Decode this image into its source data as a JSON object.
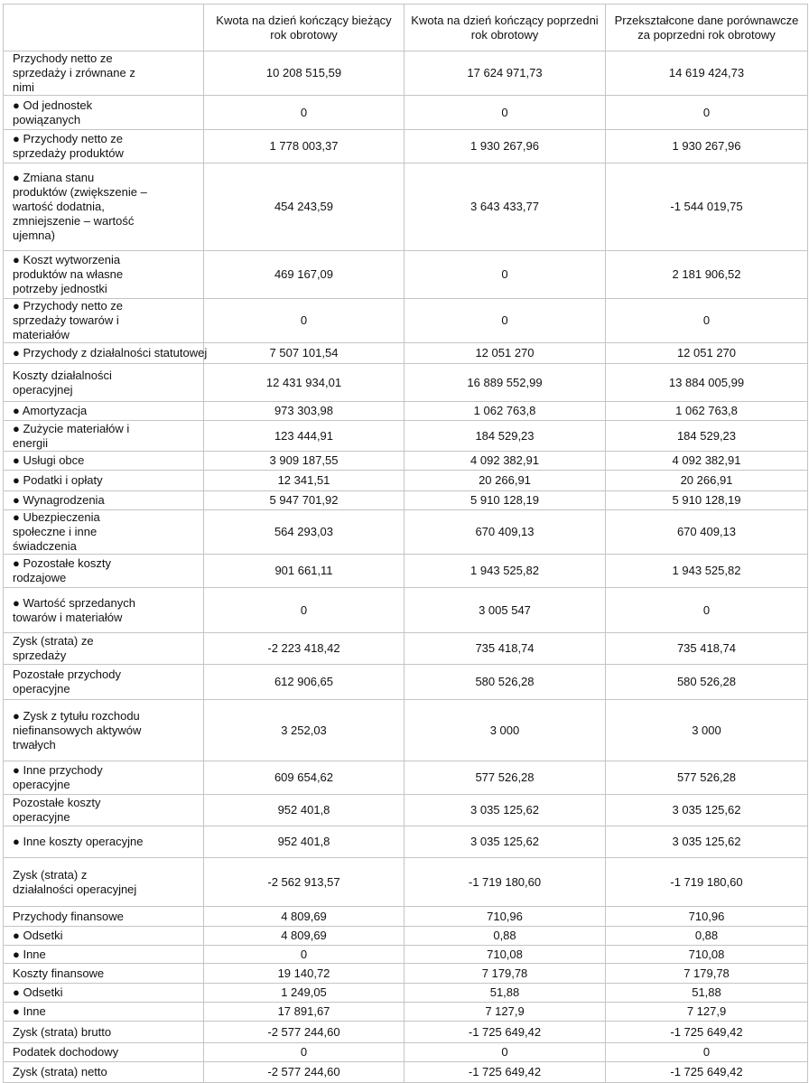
{
  "table": {
    "headers": [
      "",
      "Kwota na dzień kończący bieżący rok obrotowy",
      "Kwota na dzień kończący poprzedni rok obrotowy",
      "Przekształcone dane porównawcze za poprzedni rok obrotowy"
    ],
    "rows": [
      {
        "label": "Przychody netto ze sprzedaży i zrównane z nimi",
        "values": [
          "10 208 515,59",
          "17 624 971,73",
          "14 619 424,73"
        ]
      },
      {
        "label": "● Od jednostek powiązanych",
        "values": [
          "0",
          "0",
          "0"
        ]
      },
      {
        "label": "● Przychody netto ze sprzedaży produktów",
        "values": [
          "1 778 003,37",
          "1 930 267,96",
          "1 930 267,96"
        ]
      },
      {
        "label": "● Zmiana stanu produktów (zwiększenie – wartość dodatnia, zmniejszenie – wartość ujemna)",
        "values": [
          "454 243,59",
          "3 643 433,77",
          "-1 544 019,75"
        ]
      },
      {
        "label": "● Koszt wytworzenia produktów na własne potrzeby jednostki",
        "values": [
          "469 167,09",
          "0",
          "2 181 906,52"
        ]
      },
      {
        "label": "● Przychody netto ze sprzedaży towarów i materiałów",
        "values": [
          "0",
          "0",
          "0"
        ]
      },
      {
        "label": "●    Przychody z działalności statutowej",
        "values": [
          "7 507 101,54",
          "12 051 270",
          "12 051 270"
        ]
      },
      {
        "label": "Koszty działalności operacyjnej",
        "values": [
          "12 431 934,01",
          "16 889 552,99",
          "13 884 005,99"
        ]
      },
      {
        "label": "● Amortyzacja",
        "values": [
          "973 303,98",
          "1 062 763,8",
          "1 062 763,8"
        ]
      },
      {
        "label": "● Zużycie materiałów i energii",
        "values": [
          "123 444,91",
          "184 529,23",
          "184 529,23"
        ]
      },
      {
        "label": "● Usługi obce",
        "values": [
          "3 909 187,55",
          "4 092 382,91",
          "4 092 382,91"
        ]
      },
      {
        "label": "● Podatki i opłaty",
        "values": [
          "12 341,51",
          "20 266,91",
          "20 266,91"
        ]
      },
      {
        "label": "● Wynagrodzenia",
        "values": [
          "5 947 701,92",
          "5 910 128,19",
          "5 910 128,19"
        ]
      },
      {
        "label": "● Ubezpieczenia społeczne i inne świadczenia",
        "values": [
          "564 293,03",
          "670 409,13",
          "670 409,13"
        ]
      },
      {
        "label": "● Pozostałe koszty rodzajowe",
        "values": [
          "901 661,11",
          "1 943 525,82",
          "1 943 525,82"
        ]
      },
      {
        "label": "● Wartość sprzedanych towarów i materiałów",
        "values": [
          "0",
          "3 005 547",
          "0"
        ]
      },
      {
        "label": "Zysk (strata) ze sprzedaży",
        "values": [
          "-2 223 418,42",
          "735 418,74",
          "735 418,74"
        ]
      },
      {
        "label": "Pozostałe przychody operacyjne",
        "values": [
          "612 906,65",
          "580 526,28",
          "580 526,28"
        ]
      },
      {
        "label": "● Zysk z tytułu rozchodu niefinansowych aktywów trwałych",
        "values": [
          "3 252,03",
          "3 000",
          "3 000"
        ]
      },
      {
        "label": "● Inne przychody operacyjne",
        "values": [
          "609 654,62",
          "577 526,28",
          "577 526,28"
        ]
      },
      {
        "label": "Pozostałe koszty operacyjne",
        "values": [
          "952 401,8",
          "3 035 125,62",
          "3 035 125,62"
        ]
      },
      {
        "label": "● Inne koszty operacyjne",
        "values": [
          "952 401,8",
          "3 035 125,62",
          "3 035 125,62"
        ]
      },
      {
        "label": "Zysk (strata) z działalności operacyjnej",
        "values": [
          "-2 562 913,57",
          "-1 719 180,60",
          "-1 719 180,60"
        ]
      },
      {
        "label": "Przychody finansowe",
        "values": [
          "4 809,69",
          "710,96",
          "710,96"
        ]
      },
      {
        "label": "● Odsetki",
        "values": [
          "4 809,69",
          "0,88",
          "0,88"
        ]
      },
      {
        "label": "● Inne",
        "values": [
          "0",
          "710,08",
          "710,08"
        ]
      },
      {
        "label": "Koszty finansowe",
        "values": [
          "19 140,72",
          "7 179,78",
          "7 179,78"
        ]
      },
      {
        "label": "● Odsetki",
        "values": [
          "1 249,05",
          "51,88",
          "51,88"
        ]
      },
      {
        "label": "● Inne",
        "values": [
          "17 891,67",
          "7 127,9",
          "7 127,9"
        ]
      },
      {
        "label": "Zysk (strata) brutto",
        "values": [
          "-2 577 244,60",
          "-1 725 649,42",
          "-1 725 649,42"
        ]
      },
      {
        "label": "Podatek dochodowy",
        "values": [
          "0",
          "0",
          "0"
        ]
      },
      {
        "label": "Zysk (strata) netto",
        "values": [
          "-2 577 244,60",
          "-1 725 649,42",
          "-1 725 649,42"
        ]
      }
    ]
  }
}
